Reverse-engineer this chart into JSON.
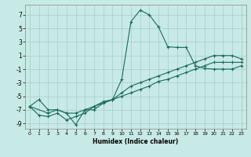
{
  "xlabel": "Humidex (Indice chaleur)",
  "background_color": "#c8eae6",
  "grid_color": "#a8ccc8",
  "line_color": "#1a6b5a",
  "xlim": [
    -0.5,
    23.5
  ],
  "ylim": [
    -9.8,
    8.5
  ],
  "xticks": [
    0,
    1,
    2,
    3,
    4,
    5,
    6,
    7,
    8,
    9,
    10,
    11,
    12,
    13,
    14,
    15,
    16,
    17,
    18,
    19,
    20,
    21,
    22,
    23
  ],
  "yticks": [
    -9,
    -7,
    -5,
    -3,
    -1,
    1,
    3,
    5,
    7
  ],
  "line1_x": [
    0,
    1,
    2,
    3,
    4,
    5,
    6,
    7,
    8,
    9,
    10,
    11,
    12,
    13,
    14,
    15,
    16,
    17,
    18,
    19,
    20,
    21,
    22,
    23
  ],
  "line1_y": [
    -6.5,
    -5.5,
    -7.0,
    -7.0,
    -7.5,
    -9.2,
    -7.0,
    -7.0,
    -6.0,
    -5.5,
    -2.5,
    6.0,
    7.7,
    7.0,
    5.2,
    2.3,
    2.2,
    2.2,
    -0.5,
    -0.9,
    -1.0,
    -1.0,
    -1.0,
    -0.5
  ],
  "line2_x": [
    0,
    1,
    2,
    3,
    4,
    5,
    6,
    7,
    8,
    9,
    10,
    11,
    12,
    13,
    14,
    15,
    16,
    17,
    18,
    19,
    20,
    21,
    22,
    23
  ],
  "line2_y": [
    -6.5,
    -7.8,
    -8.0,
    -7.5,
    -8.5,
    -8.0,
    -7.5,
    -6.5,
    -5.8,
    -5.5,
    -5.0,
    -4.5,
    -4.0,
    -3.5,
    -2.8,
    -2.5,
    -2.0,
    -1.5,
    -1.0,
    -0.5,
    0.0,
    0.0,
    0.0,
    0.0
  ],
  "line3_x": [
    0,
    2,
    3,
    4,
    5,
    6,
    7,
    8,
    9,
    10,
    11,
    12,
    13,
    14,
    15,
    16,
    17,
    18,
    19,
    20,
    21,
    22,
    23
  ],
  "line3_y": [
    -6.5,
    -7.5,
    -7.0,
    -7.5,
    -7.5,
    -7.0,
    -6.5,
    -6.0,
    -5.5,
    -4.5,
    -3.5,
    -3.0,
    -2.5,
    -2.0,
    -1.5,
    -1.0,
    -0.5,
    0.0,
    0.5,
    1.0,
    1.0,
    1.0,
    0.5
  ]
}
